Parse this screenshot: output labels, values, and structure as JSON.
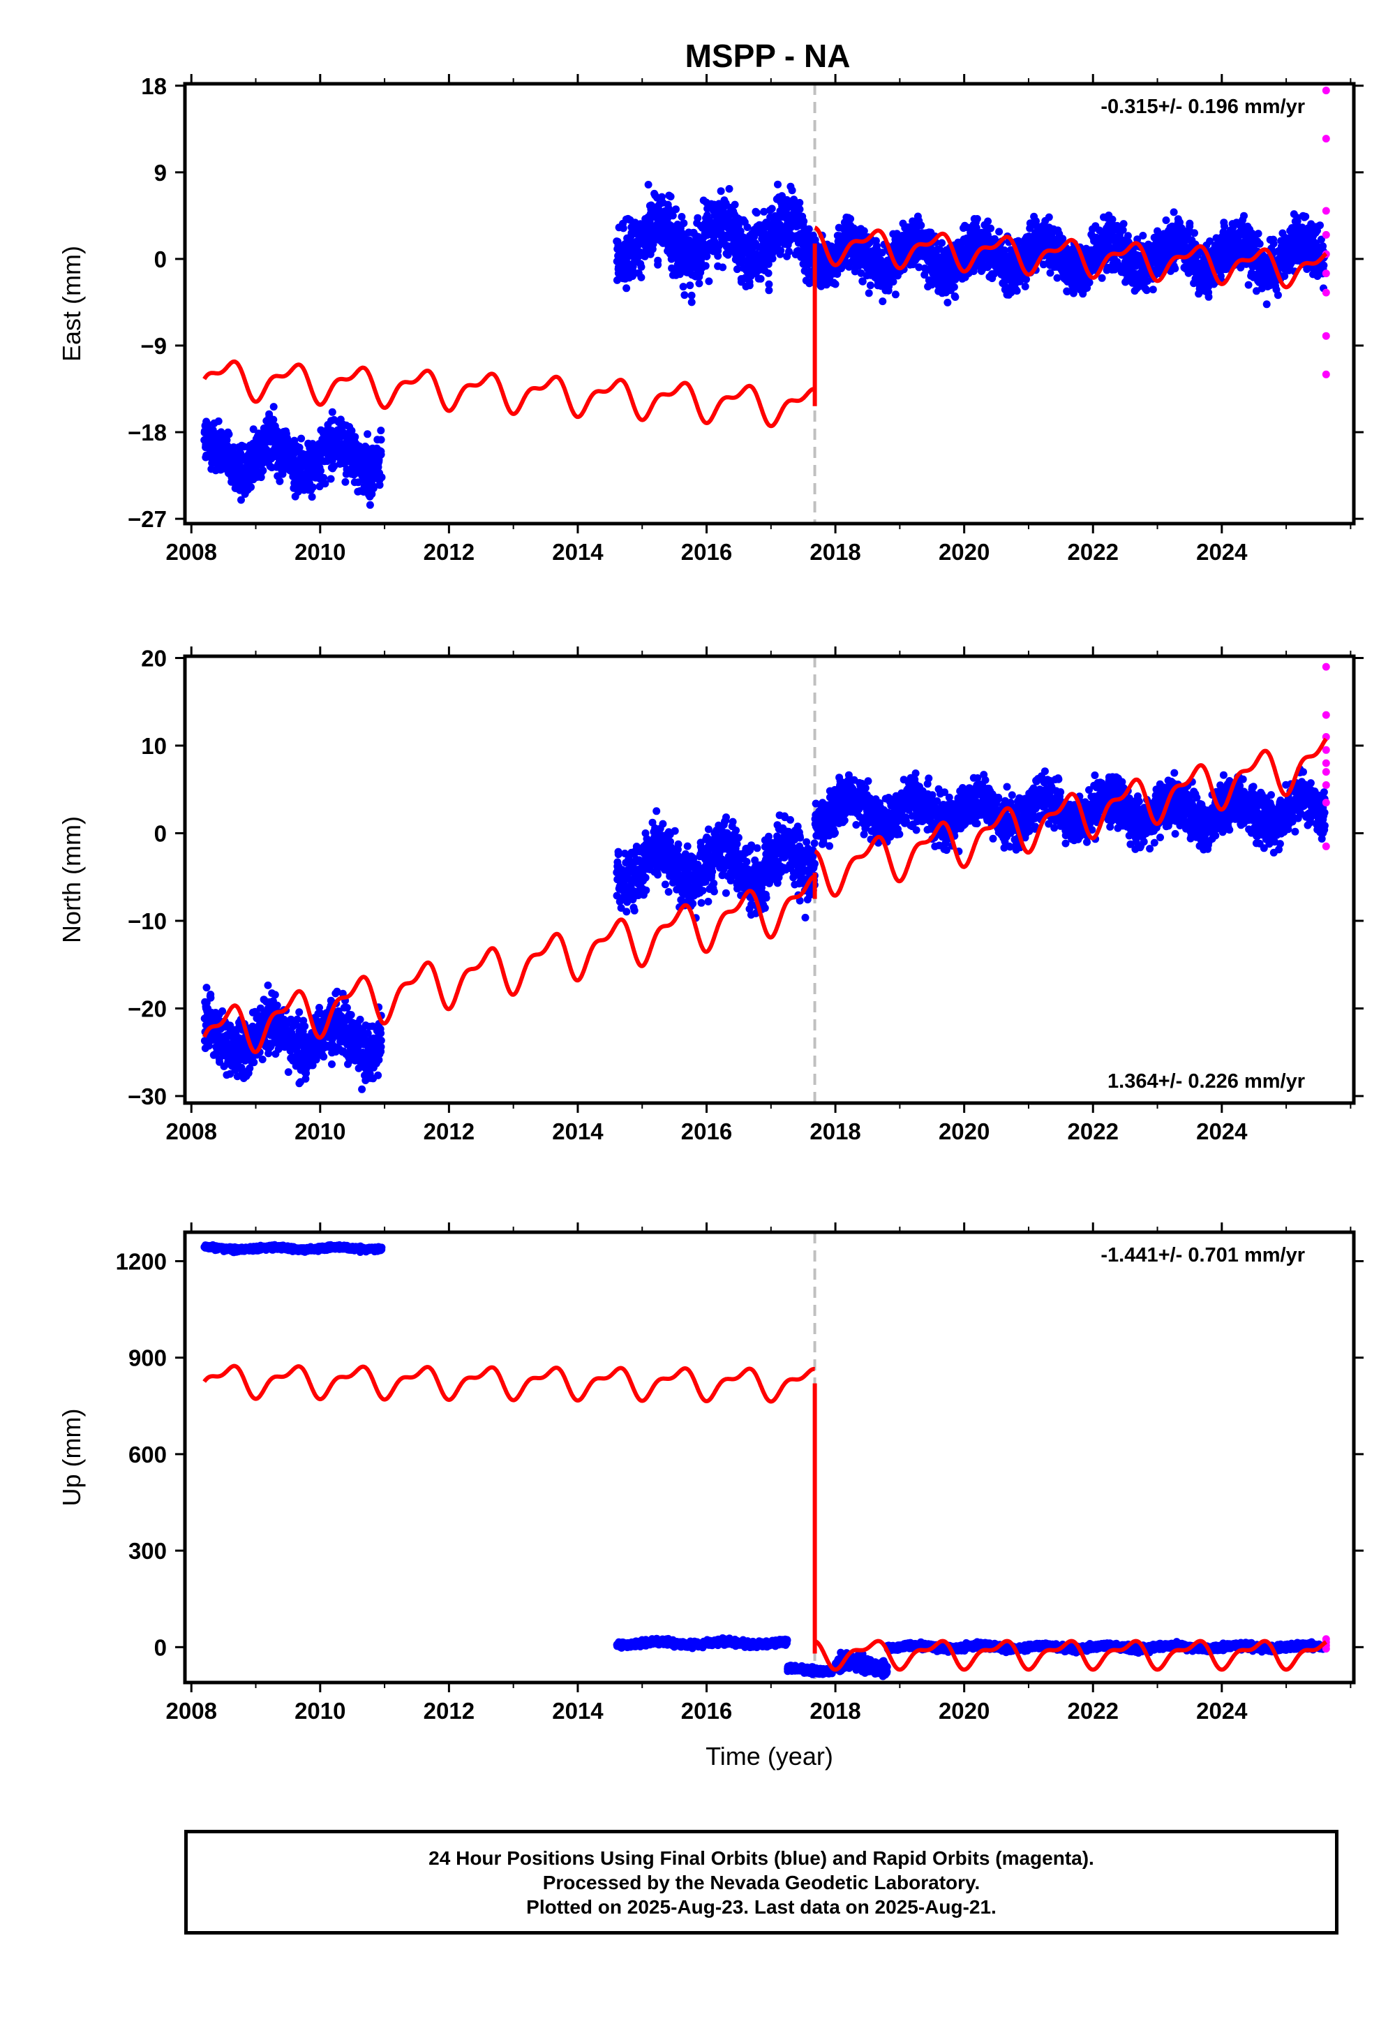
{
  "title": "MSPP - NA",
  "footer": {
    "lines": [
      "24 Hour Positions Using Final Orbits (blue) and Rapid Orbits (magenta).",
      "Processed by the Nevada Geodetic Laboratory.",
      "Plotted on 2025-Aug-23. Last data on 2025-Aug-21."
    ]
  },
  "colors": {
    "final_orbits": "#0000ff",
    "rapid_orbits": "#ff00ff",
    "model": "#ff0000",
    "break_line": "#c0c0c0"
  },
  "chart_data": [
    {
      "type": "scatter",
      "ylabel": "East (mm)",
      "xlabel": "",
      "xlim": [
        2007.9,
        2026.05
      ],
      "ylim": [
        -27.5,
        18.2
      ],
      "xticks": [
        2008,
        2010,
        2012,
        2014,
        2016,
        2018,
        2020,
        2022,
        2024
      ],
      "yticks": [
        -27,
        -18,
        -9,
        0,
        9,
        18
      ],
      "annotation": "-0.315+/- 0.196 mm/yr",
      "annotation_position": "top-right",
      "break_epoch": 2017.68,
      "grid": false,
      "series": [
        {
          "name": "Final Orbits",
          "style": "points",
          "segments": [
            {
              "x_start": 2008.2,
              "x_end": 2010.95,
              "mean": -20.5,
              "scatter": 2.5
            },
            {
              "x_start": 2014.6,
              "x_end": 2017.68,
              "mean": 2.0,
              "scatter": 3.0
            },
            {
              "x_start": 2017.68,
              "x_end": 2025.6,
              "mean": 0.3,
              "scatter": 2.3
            }
          ]
        },
        {
          "name": "Rapid Orbits",
          "style": "points",
          "x": [
            2025.62,
            2025.62,
            2025.62,
            2025.62,
            2025.62,
            2025.62,
            2025.62,
            2025.62,
            2025.62
          ],
          "y": [
            17.5,
            12.5,
            5.0,
            2.5,
            0.5,
            -1.5,
            -3.5,
            -8.0,
            -12.0
          ]
        },
        {
          "name": "Model",
          "style": "line",
          "pre_break": {
            "x_start": 2008.2,
            "x_end": 2017.68,
            "y_start": -12.3,
            "y_end": -15.3,
            "seasonal_amplitude": 1.6
          },
          "post_break": {
            "x_start": 2017.68,
            "x_end": 2025.62,
            "y_start": 1.6,
            "y_end": -1.0,
            "seasonal_amplitude": 1.5
          }
        }
      ]
    },
    {
      "type": "scatter",
      "ylabel": "North (mm)",
      "xlabel": "",
      "xlim": [
        2007.9,
        2026.05
      ],
      "ylim": [
        -30.8,
        20.2
      ],
      "xticks": [
        2008,
        2010,
        2012,
        2014,
        2016,
        2018,
        2020,
        2022,
        2024
      ],
      "yticks": [
        -30,
        -20,
        -10,
        0,
        10,
        20
      ],
      "annotation": "1.364+/- 0.226 mm/yr",
      "annotation_position": "bottom-right",
      "break_epoch": 2017.68,
      "grid": false,
      "series": [
        {
          "name": "Final Orbits",
          "style": "points",
          "segments": [
            {
              "x_start": 2008.2,
              "x_end": 2010.95,
              "mean": -23.5,
              "scatter": 2.8
            },
            {
              "x_start": 2014.6,
              "x_end": 2017.68,
              "mean": -3.5,
              "scatter": 3.2
            },
            {
              "x_start": 2017.68,
              "x_end": 2025.6,
              "mean": 2.5,
              "scatter": 2.4
            }
          ]
        },
        {
          "name": "Rapid Orbits",
          "style": "points",
          "x": [
            2025.62,
            2025.62,
            2025.62,
            2025.62,
            2025.62,
            2025.62,
            2025.62,
            2025.62,
            2025.62
          ],
          "y": [
            19.0,
            13.5,
            11.0,
            9.5,
            8.0,
            7.0,
            5.5,
            3.5,
            -1.5
          ]
        },
        {
          "name": "Model",
          "style": "line",
          "pre_break": {
            "x_start": 2008.2,
            "x_end": 2017.68,
            "y_start": -23.0,
            "y_end": -7.5,
            "seasonal_amplitude": 2.3
          },
          "post_break": {
            "x_start": 2017.68,
            "x_end": 2025.62,
            "y_start": -4.5,
            "y_end": 8.5,
            "seasonal_amplitude": 2.2
          }
        }
      ]
    },
    {
      "type": "scatter",
      "ylabel": "Up (mm)",
      "xlabel": "Time (year)",
      "xlim": [
        2007.9,
        2026.05
      ],
      "ylim": [
        -110,
        1290
      ],
      "xticks": [
        2008,
        2010,
        2012,
        2014,
        2016,
        2018,
        2020,
        2022,
        2024
      ],
      "yticks": [
        0,
        300,
        600,
        900,
        1200
      ],
      "annotation": "-1.441+/- 0.701 mm/yr",
      "annotation_position": "top-right",
      "break_epoch": 2017.68,
      "grid": false,
      "series": [
        {
          "name": "Final Orbits",
          "style": "points",
          "segments": [
            {
              "x_start": 2008.2,
              "x_end": 2010.95,
              "mean": 1240,
              "scatter": 6
            },
            {
              "x_start": 2014.6,
              "x_end": 2017.25,
              "mean": 12,
              "scatter": 8
            },
            {
              "x_start": 2017.25,
              "x_end": 2017.95,
              "mean": -70,
              "scatter": 8
            },
            {
              "x_start": 2018.0,
              "x_end": 2018.8,
              "mean": -55,
              "scatter": 20
            },
            {
              "x_start": 2018.8,
              "x_end": 2025.6,
              "mean": 0,
              "scatter": 8
            }
          ]
        },
        {
          "name": "Rapid Orbits",
          "style": "points",
          "x": [
            2025.62,
            2025.62,
            2025.62,
            2025.62
          ],
          "y": [
            25,
            15,
            5,
            -5
          ]
        },
        {
          "name": "Model",
          "style": "line",
          "pre_break": {
            "x_start": 2008.2,
            "x_end": 2017.68,
            "y_start": 830,
            "y_end": 820,
            "seasonal_amplitude": 40
          },
          "post_break": {
            "x_start": 2017.68,
            "x_end": 2025.62,
            "y_start": -20,
            "y_end": -20,
            "seasonal_amplitude": 35
          }
        }
      ]
    }
  ]
}
